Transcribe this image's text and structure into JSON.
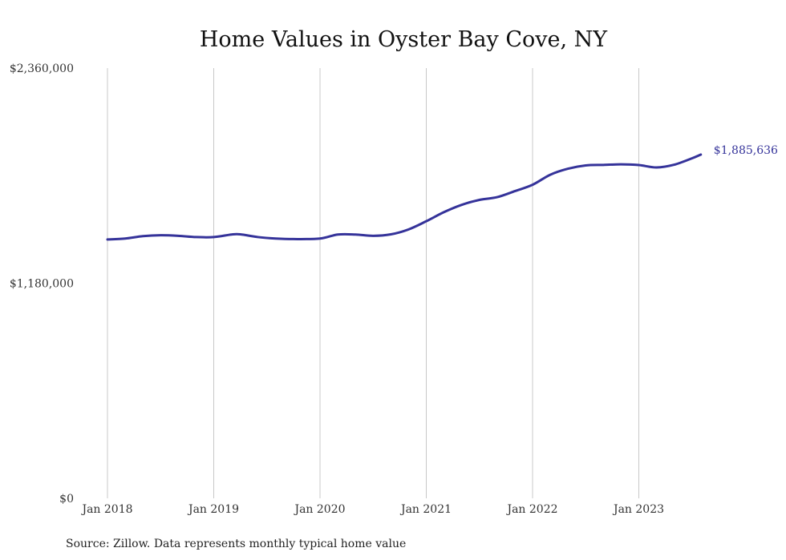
{
  "chart_data": {
    "type": "line",
    "title": "Home Values in Oyster Bay Cove, NY",
    "xlabel": "",
    "ylabel": "",
    "ylim": [
      0,
      2360000
    ],
    "y_ticks": [
      {
        "value": 0,
        "label": "$0"
      },
      {
        "value": 1180000,
        "label": "$1,180,000"
      },
      {
        "value": 2360000,
        "label": "$2,360,000"
      }
    ],
    "x_ticks": [
      "Jan 2018",
      "Jan 2019",
      "Jan 2020",
      "Jan 2021",
      "Jan 2022",
      "Jan 2023"
    ],
    "x_range": [
      "2018-01",
      "2023-08"
    ],
    "grid": "vertical",
    "series": [
      {
        "color": "#35339a",
        "end_label": "$1,885,636",
        "points": [
          {
            "x": "2018-01",
            "y": 1420000
          },
          {
            "x": "2018-03",
            "y": 1425000
          },
          {
            "x": "2018-05",
            "y": 1438000
          },
          {
            "x": "2018-07",
            "y": 1443000
          },
          {
            "x": "2018-09",
            "y": 1440000
          },
          {
            "x": "2018-11",
            "y": 1433000
          },
          {
            "x": "2019-01",
            "y": 1433000
          },
          {
            "x": "2019-03",
            "y": 1447000
          },
          {
            "x": "2019-04",
            "y": 1448000
          },
          {
            "x": "2019-06",
            "y": 1433000
          },
          {
            "x": "2019-08",
            "y": 1425000
          },
          {
            "x": "2019-10",
            "y": 1422000
          },
          {
            "x": "2020-01",
            "y": 1425000
          },
          {
            "x": "2020-03",
            "y": 1447000
          },
          {
            "x": "2020-05",
            "y": 1447000
          },
          {
            "x": "2020-07",
            "y": 1440000
          },
          {
            "x": "2020-09",
            "y": 1448000
          },
          {
            "x": "2020-11",
            "y": 1475000
          },
          {
            "x": "2021-01",
            "y": 1520000
          },
          {
            "x": "2021-03",
            "y": 1570000
          },
          {
            "x": "2021-05",
            "y": 1610000
          },
          {
            "x": "2021-07",
            "y": 1637000
          },
          {
            "x": "2021-09",
            "y": 1652000
          },
          {
            "x": "2021-11",
            "y": 1685000
          },
          {
            "x": "2022-01",
            "y": 1720000
          },
          {
            "x": "2022-03",
            "y": 1775000
          },
          {
            "x": "2022-05",
            "y": 1808000
          },
          {
            "x": "2022-07",
            "y": 1826000
          },
          {
            "x": "2022-09",
            "y": 1829000
          },
          {
            "x": "2022-11",
            "y": 1832000
          },
          {
            "x": "2023-01",
            "y": 1828000
          },
          {
            "x": "2023-03",
            "y": 1815000
          },
          {
            "x": "2023-05",
            "y": 1830000
          },
          {
            "x": "2023-07",
            "y": 1865000
          },
          {
            "x": "2023-08",
            "y": 1885636
          }
        ]
      }
    ]
  },
  "source_note": "Source: Zillow. Data represents monthly typical home value"
}
